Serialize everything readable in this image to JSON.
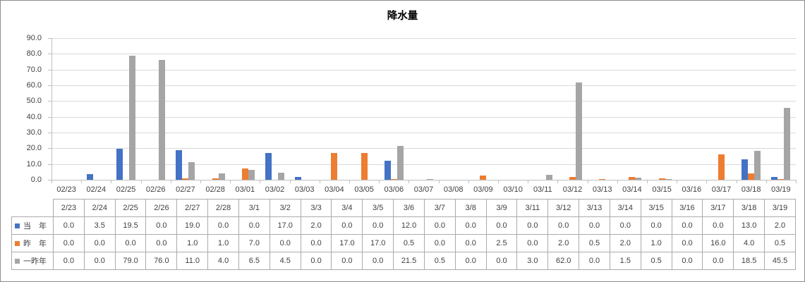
{
  "chart_data": {
    "type": "bar",
    "title": "降水量",
    "xlabel": "",
    "ylabel": "",
    "ylim": [
      0,
      90
    ],
    "y_tick_step": 10,
    "y_tick_labels": [
      "90.0",
      "80.0",
      "70.0",
      "60.0",
      "50.0",
      "40.0",
      "30.0",
      "20.0",
      "10.0",
      "0.0"
    ],
    "grid": "horizontal",
    "legend_position": "data-table-row-keys",
    "x": [
      "02/23",
      "02/24",
      "02/25",
      "02/26",
      "02/27",
      "02/28",
      "03/01",
      "03/02",
      "03/03",
      "03/04",
      "03/05",
      "03/06",
      "03/07",
      "03/08",
      "03/09",
      "03/10",
      "03/11",
      "03/12",
      "03/13",
      "03/14",
      "03/15",
      "03/16",
      "03/17",
      "03/18",
      "03/19"
    ],
    "series": [
      {
        "name": "当　年",
        "color": "#4472C4",
        "values": [
          0,
          3.5,
          19.5,
          0,
          19,
          0,
          0,
          17,
          2,
          0,
          0,
          12,
          0,
          0,
          0,
          null,
          0,
          0,
          0,
          0,
          0,
          0,
          0,
          13,
          2
        ]
      },
      {
        "name": "昨　年",
        "color": "#ED7D31",
        "values": [
          0,
          0,
          0,
          0,
          1,
          1,
          7,
          0,
          0,
          17,
          17,
          0.5,
          0,
          0,
          2.5,
          null,
          0,
          2,
          0.5,
          2,
          1,
          0,
          16,
          4,
          0.5
        ]
      },
      {
        "name": "一昨年",
        "color": "#A5A5A5",
        "values": [
          0,
          0,
          79,
          76,
          11,
          4,
          6.5,
          4.5,
          0,
          0,
          0,
          21.5,
          0.5,
          0,
          0,
          null,
          3,
          62,
          0,
          1.5,
          0.5,
          0,
          0,
          18.5,
          45.5
        ]
      }
    ]
  },
  "data_table": {
    "columns": [
      "2/23",
      "2/24",
      "2/25",
      "2/26",
      "2/27",
      "2/28",
      "3/1",
      "3/2",
      "3/3",
      "3/4",
      "3/5",
      "3/6",
      "3/7",
      "3/8",
      "3/9",
      "3/11",
      "3/12",
      "3/13",
      "3/14",
      "3/15",
      "3/16",
      "3/17",
      "3/18",
      "3/19"
    ],
    "rows": [
      {
        "label": "当　年",
        "key_color": "#4472C4",
        "values": [
          "0.0",
          "3.5",
          "19.5",
          "0.0",
          "19.0",
          "0.0",
          "0.0",
          "17.0",
          "2.0",
          "0.0",
          "0.0",
          "12.0",
          "0.0",
          "0.0",
          "0.0",
          "0.0",
          "0.0",
          "0.0",
          "0.0",
          "0.0",
          "0.0",
          "0.0",
          "13.0",
          "2.0"
        ]
      },
      {
        "label": "昨　年",
        "key_color": "#ED7D31",
        "values": [
          "0.0",
          "0.0",
          "0.0",
          "0.0",
          "1.0",
          "1.0",
          "7.0",
          "0.0",
          "0.0",
          "17.0",
          "17.0",
          "0.5",
          "0.0",
          "0.0",
          "2.5",
          "0.0",
          "2.0",
          "0.5",
          "2.0",
          "1.0",
          "0.0",
          "16.0",
          "4.0",
          "0.5"
        ]
      },
      {
        "label": "一昨年",
        "key_color": "#A5A5A5",
        "values": [
          "0.0",
          "0.0",
          "79.0",
          "76.0",
          "11.0",
          "4.0",
          "6.5",
          "4.5",
          "0.0",
          "0.0",
          "0.0",
          "21.5",
          "0.5",
          "0.0",
          "0.0",
          "3.0",
          "62.0",
          "0.0",
          "1.5",
          "0.5",
          "0.0",
          "0.0",
          "18.5",
          "45.5"
        ]
      }
    ]
  },
  "colors": {
    "series_this_year": "#4472C4",
    "series_last_year": "#ED7D31",
    "series_two_years_ago": "#A5A5A5",
    "gridline": "#D9D9D9",
    "axis_line": "#BFBFBF",
    "table_border": "#ABABAB",
    "label_text": "#404040",
    "chart_border": "#8C8C8C"
  }
}
